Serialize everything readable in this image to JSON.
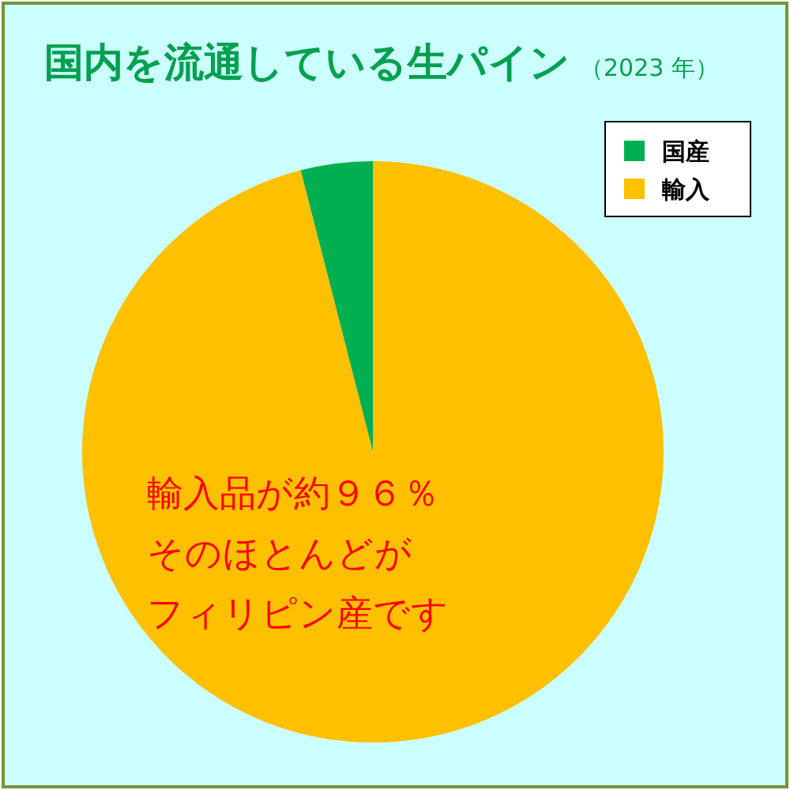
{
  "chart_data": {
    "type": "pie",
    "title": "国内を流通している生パイン",
    "subtitle": "（2023 年）",
    "categories": [
      "国産",
      "輸入"
    ],
    "values": [
      4,
      96
    ],
    "colors": [
      "#00b050",
      "#ffc000"
    ],
    "legend": "top right",
    "annotations": [
      "輸入品が約９６％",
      "そのほとんどが",
      "フィリピン産です"
    ]
  }
}
